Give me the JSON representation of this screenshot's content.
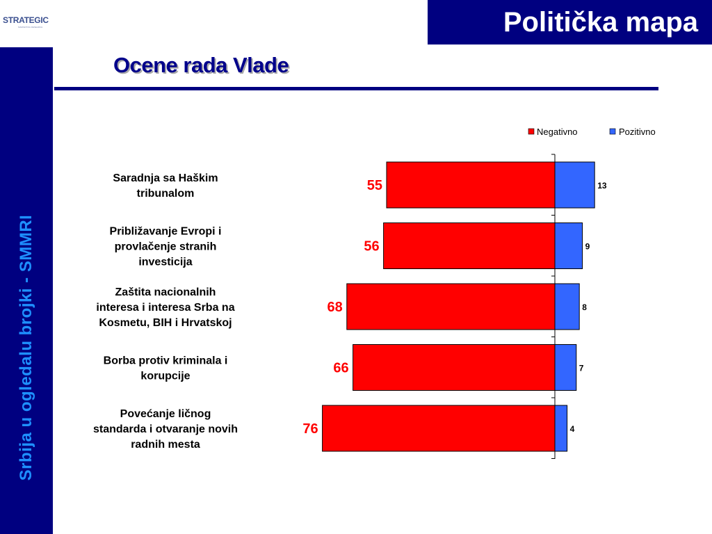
{
  "header": {
    "logo_text": "STRATEGIC",
    "logo_sub": "MARKETING RESEARCH",
    "title": "Politička mapa"
  },
  "sidebar": {
    "text": "Srbija u ogledalu brojki - SMMRI"
  },
  "slide": {
    "title": "Ocene rada Vlade"
  },
  "colors": {
    "negative": "#ff0000",
    "positive": "#3366ff",
    "navy": "#000080",
    "label_red": "#ff0000"
  },
  "chart_data": {
    "type": "bar",
    "orientation": "horizontal-diverging",
    "categories": [
      "Saradnja sa Haškim tribunalom",
      "Približavanje Evropi i provlačenje stranih investicija",
      "Zaštita nacionalnih interesa i interesa Srba na Kosmetu, BIH i Hrvatskoj",
      "Borba protiv kriminala i korupcije",
      "Povećanje ličnog standarda i otvaranje novih radnih mesta"
    ],
    "category_lines": [
      [
        "Saradnja sa Haškim",
        "tribunalom"
      ],
      [
        "Približavanje Evropi i",
        "provlačenje stranih",
        "investicija"
      ],
      [
        "Zaštita nacionalnih",
        "interesa i interesa Srba na",
        "Kosmetu, BIH i Hrvatskoj"
      ],
      [
        "Borba protiv kriminala i",
        "korupcije"
      ],
      [
        "Povećanje ličnog",
        "standarda i otvaranje novih",
        "radnih mesta"
      ]
    ],
    "series": [
      {
        "name": "Negativno",
        "values": [
          55,
          56,
          68,
          66,
          76
        ]
      },
      {
        "name": "Pozitivno",
        "values": [
          13,
          9,
          8,
          7,
          4
        ]
      }
    ],
    "legend_position": "top-right",
    "grid": false
  }
}
